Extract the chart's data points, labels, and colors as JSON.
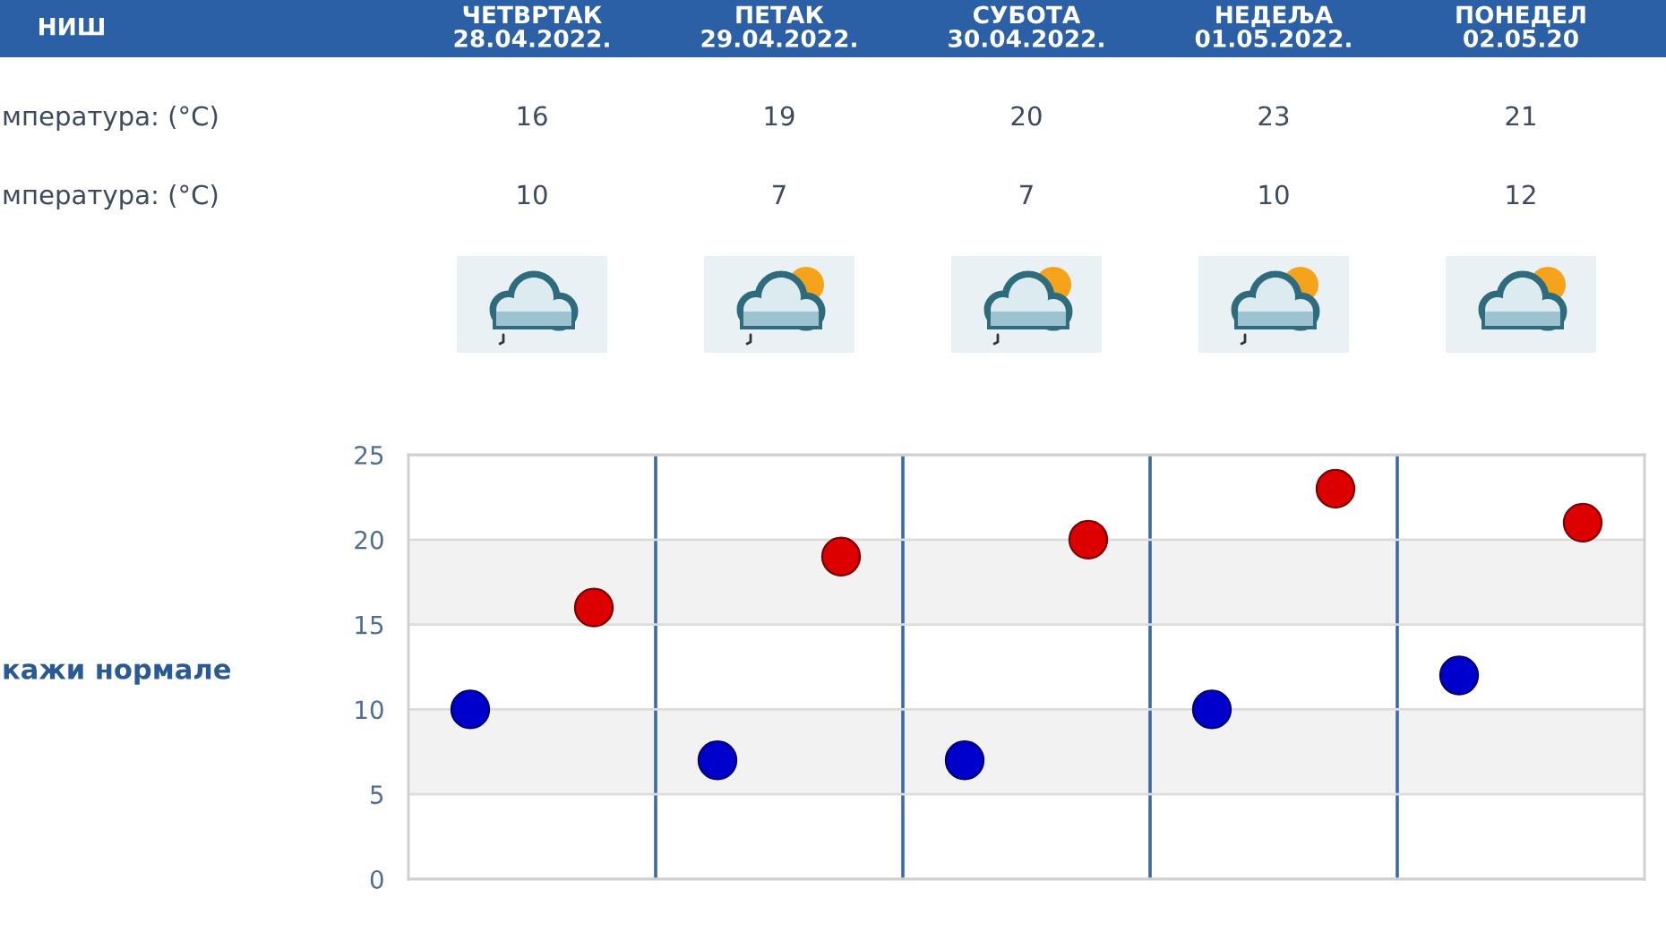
{
  "chart_data": {
    "type": "scatter",
    "title": "НИШ",
    "categories": [
      null,
      null,
      null,
      null,
      null
    ],
    "series": [
      {
        "color": "#dd0000",
        "values": [
          16,
          19,
          20,
          23,
          21
        ]
      },
      {
        "color": "#0000cc",
        "values": [
          10,
          7,
          7,
          10,
          12
        ]
      }
    ],
    "ylim": [
      0,
      25
    ],
    "yticks": [
      0,
      5,
      10,
      15,
      20,
      25
    ],
    "grid": true,
    "marker": "circle",
    "data_labels": true,
    "bands": [
      {
        "axis": "y",
        "from": 5,
        "to": 10,
        "color": "#f2f2f2"
      },
      {
        "axis": "y",
        "from": 15,
        "to": 20,
        "color": "#f2f2f2"
      }
    ],
    "annotations": [
      "ЧЕТВРТАК\n28.04.2022.",
      "ПЕТАК\n29.04.2022.",
      "СУБОТА\n30.04.2022.",
      "НЕДЕЉА\n01.05.2022.",
      "ПОНЕДЕЛ\n02.05.20",
      "мпература: (°C)",
      "мпература: (°C)",
      "кажи нормале"
    ]
  }
}
